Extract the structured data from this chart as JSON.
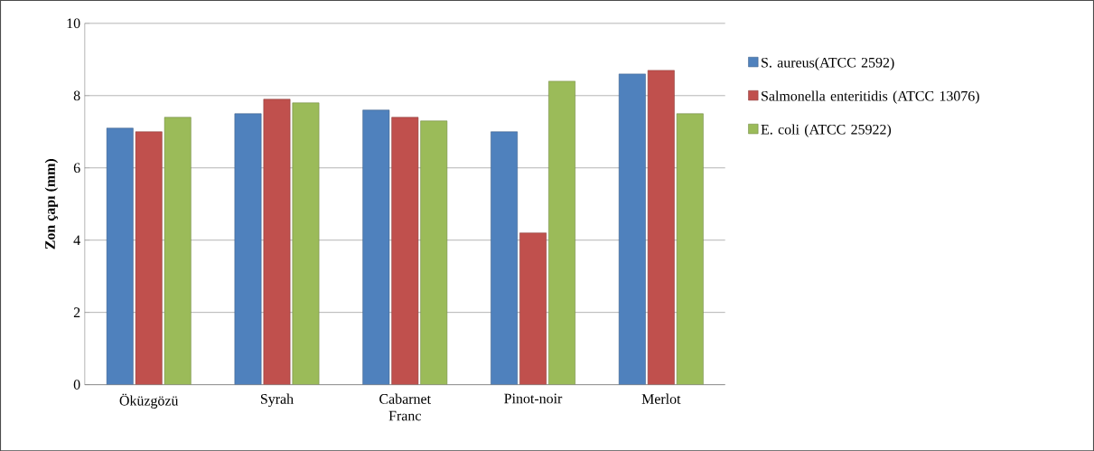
{
  "chart_data": {
    "type": "bar",
    "ylabel": "Zon çapı (mm)",
    "categories": [
      "Öküzgözü",
      "Syrah",
      "Cabarnet Franc",
      "Pinot-noir",
      "Merlot"
    ],
    "series": [
      {
        "name": "S. aureus(ATCC 2592)",
        "color": "#4f81bd",
        "values": [
          7.1,
          7.5,
          7.6,
          7.0,
          8.6
        ]
      },
      {
        "name": "Salmonella enteritidis (ATCC 13076)",
        "color": "#c0504d",
        "values": [
          7.0,
          7.9,
          7.4,
          4.2,
          8.7
        ]
      },
      {
        "name": "E. coli (ATCC 25922)",
        "color": "#9bbb59",
        "values": [
          7.4,
          7.8,
          7.3,
          8.4,
          7.5
        ]
      }
    ],
    "ylim": [
      0,
      10
    ],
    "yticks": [
      0,
      2,
      4,
      6,
      8,
      10
    ],
    "grid": "y",
    "legend": "right"
  }
}
